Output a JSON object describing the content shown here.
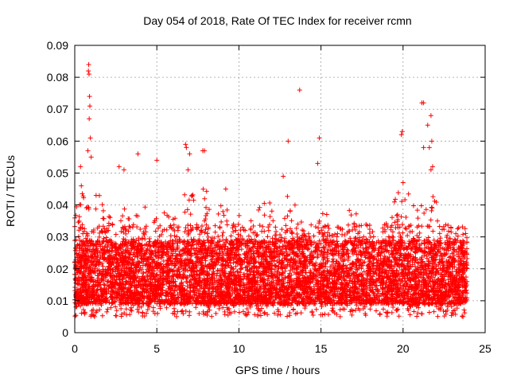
{
  "chart_data": {
    "type": "scatter",
    "title": "Day 054 of 2018, Rate Of TEC Index for receiver rcmn",
    "xlabel": "GPS time / hours",
    "ylabel": "ROTI / TECUs",
    "xlim": [
      0,
      25
    ],
    "ylim": [
      0,
      0.09
    ],
    "x_ticks": [
      0,
      5,
      10,
      15,
      20,
      25
    ],
    "x_tick_labels": [
      "0",
      "5",
      "10",
      "15",
      "20",
      "25"
    ],
    "y_ticks": [
      0,
      0.01,
      0.02,
      0.03,
      0.04,
      0.05,
      0.06,
      0.07,
      0.08,
      0.09
    ],
    "y_tick_labels": [
      "0",
      "0.01",
      "0.02",
      "0.03",
      "0.04",
      "0.05",
      "0.06",
      "0.07",
      "0.08",
      "0.09"
    ],
    "grid": true,
    "marker": "+",
    "color": "#ff0000",
    "series": [
      {
        "name": "ROTI",
        "x_range": [
          0,
          23.9
        ],
        "typical_range": [
          0.005,
          0.03
        ],
        "outliers": [
          {
            "x": 0.85,
            "y": 0.084
          },
          {
            "x": 0.83,
            "y": 0.082
          },
          {
            "x": 0.87,
            "y": 0.081
          },
          {
            "x": 0.9,
            "y": 0.074
          },
          {
            "x": 0.92,
            "y": 0.071
          },
          {
            "x": 0.88,
            "y": 0.067
          },
          {
            "x": 0.95,
            "y": 0.061
          },
          {
            "x": 0.8,
            "y": 0.057
          },
          {
            "x": 1.0,
            "y": 0.055
          },
          {
            "x": 0.35,
            "y": 0.052
          },
          {
            "x": 0.4,
            "y": 0.046
          },
          {
            "x": 1.3,
            "y": 0.043
          },
          {
            "x": 2.7,
            "y": 0.052
          },
          {
            "x": 3.0,
            "y": 0.051
          },
          {
            "x": 3.85,
            "y": 0.056
          },
          {
            "x": 5.0,
            "y": 0.054
          },
          {
            "x": 6.75,
            "y": 0.059
          },
          {
            "x": 6.8,
            "y": 0.058
          },
          {
            "x": 7.0,
            "y": 0.056
          },
          {
            "x": 7.8,
            "y": 0.057
          },
          {
            "x": 7.9,
            "y": 0.057
          },
          {
            "x": 6.9,
            "y": 0.051
          },
          {
            "x": 9.2,
            "y": 0.045
          },
          {
            "x": 13.0,
            "y": 0.06
          },
          {
            "x": 13.7,
            "y": 0.076
          },
          {
            "x": 14.9,
            "y": 0.061
          },
          {
            "x": 14.8,
            "y": 0.053
          },
          {
            "x": 12.7,
            "y": 0.049
          },
          {
            "x": 19.95,
            "y": 0.063
          },
          {
            "x": 19.9,
            "y": 0.062
          },
          {
            "x": 20.0,
            "y": 0.047
          },
          {
            "x": 21.15,
            "y": 0.072
          },
          {
            "x": 21.25,
            "y": 0.072
          },
          {
            "x": 21.5,
            "y": 0.065
          },
          {
            "x": 21.7,
            "y": 0.068
          },
          {
            "x": 21.75,
            "y": 0.06
          },
          {
            "x": 21.6,
            "y": 0.058
          },
          {
            "x": 21.25,
            "y": 0.058
          },
          {
            "x": 21.8,
            "y": 0.052
          },
          {
            "x": 21.7,
            "y": 0.051
          }
        ],
        "envelope": [
          {
            "x": 0.0,
            "upper": 0.04
          },
          {
            "x": 0.5,
            "upper": 0.045
          },
          {
            "x": 1.0,
            "upper": 0.04
          },
          {
            "x": 1.5,
            "upper": 0.043
          },
          {
            "x": 2.0,
            "upper": 0.036
          },
          {
            "x": 3.0,
            "upper": 0.042
          },
          {
            "x": 4.0,
            "upper": 0.044
          },
          {
            "x": 5.0,
            "upper": 0.037
          },
          {
            "x": 6.0,
            "upper": 0.04
          },
          {
            "x": 7.0,
            "upper": 0.048
          },
          {
            "x": 8.0,
            "upper": 0.045
          },
          {
            "x": 9.0,
            "upper": 0.043
          },
          {
            "x": 10.0,
            "upper": 0.04
          },
          {
            "x": 11.0,
            "upper": 0.04
          },
          {
            "x": 12.0,
            "upper": 0.041
          },
          {
            "x": 13.0,
            "upper": 0.044
          },
          {
            "x": 13.5,
            "upper": 0.04
          },
          {
            "x": 14.0,
            "upper": 0.032
          },
          {
            "x": 15.0,
            "upper": 0.04
          },
          {
            "x": 16.0,
            "upper": 0.035
          },
          {
            "x": 17.0,
            "upper": 0.04
          },
          {
            "x": 18.0,
            "upper": 0.035
          },
          {
            "x": 19.0,
            "upper": 0.035
          },
          {
            "x": 19.5,
            "upper": 0.044
          },
          {
            "x": 20.0,
            "upper": 0.044
          },
          {
            "x": 21.0,
            "upper": 0.044
          },
          {
            "x": 22.0,
            "upper": 0.046
          },
          {
            "x": 23.0,
            "upper": 0.032
          },
          {
            "x": 23.9,
            "upper": 0.025
          }
        ]
      }
    ]
  }
}
